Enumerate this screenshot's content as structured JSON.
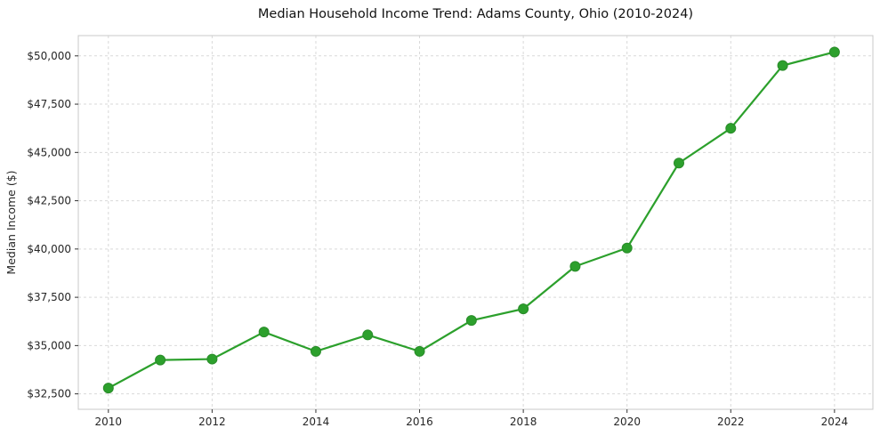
{
  "chart_data": {
    "type": "line",
    "title": "Median Household Income Trend: Adams County, Ohio (2010-2024)",
    "xlabel": "",
    "ylabel": "Median Income ($)",
    "x": [
      2010,
      2011,
      2012,
      2013,
      2014,
      2015,
      2016,
      2017,
      2018,
      2019,
      2020,
      2021,
      2022,
      2023,
      2024
    ],
    "series": [
      {
        "name": "Median Household Income",
        "values": [
          32800,
          34250,
          34300,
          35700,
          34700,
          35550,
          34700,
          36300,
          36900,
          39100,
          40050,
          44450,
          46250,
          49500,
          50200
        ]
      }
    ],
    "x_ticks": [
      {
        "value": 2010,
        "label": "2010"
      },
      {
        "value": 2012,
        "label": "2012"
      },
      {
        "value": 2014,
        "label": "2014"
      },
      {
        "value": 2016,
        "label": "2016"
      },
      {
        "value": 2018,
        "label": "2018"
      },
      {
        "value": 2020,
        "label": "2020"
      },
      {
        "value": 2022,
        "label": "2022"
      },
      {
        "value": 2024,
        "label": "2024"
      }
    ],
    "y_ticks": [
      {
        "value": 32500,
        "label": "$32,500"
      },
      {
        "value": 35000,
        "label": "$35,000"
      },
      {
        "value": 37500,
        "label": "$37,500"
      },
      {
        "value": 40000,
        "label": "$40,000"
      },
      {
        "value": 42500,
        "label": "$42,500"
      },
      {
        "value": 45000,
        "label": "$45,000"
      },
      {
        "value": 47500,
        "label": "$47,500"
      },
      {
        "value": 50000,
        "label": "$50,000"
      }
    ],
    "xlim": [
      2009.42,
      2024.74
    ],
    "ylim": [
      31700,
      51050
    ],
    "grid": true,
    "grid_style": "dashed",
    "legend": "none",
    "line_color": "#2ca02c",
    "marker_color": "#2ca02c",
    "marker_edge_color": "#2a8c2a",
    "grid_color": "#d9d9d9",
    "spine_color": "#c8c8c8",
    "tick_color": "#333333",
    "marker": "circle"
  }
}
